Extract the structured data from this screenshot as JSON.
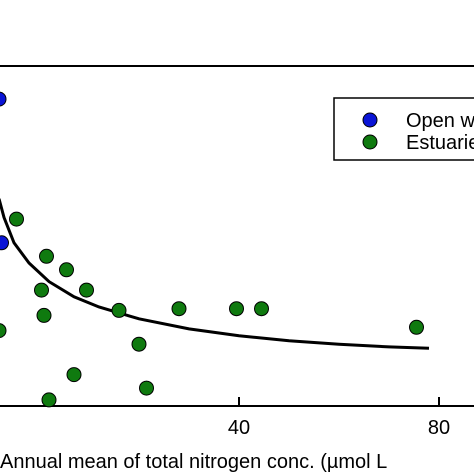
{
  "chart_data": {
    "type": "scatter",
    "xlabel": "Annual mean of total nitrogen conc. (µmol L",
    "xlim": [
      -8,
      87
    ],
    "ylim": [
      0,
      1
    ],
    "x_ticks": [
      {
        "value": 40,
        "label": "40"
      },
      {
        "value": 80,
        "label": "80"
      }
    ],
    "grid": false,
    "legend_position": "top-right",
    "series": [
      {
        "name": "Open w",
        "color": "#0a14d6",
        "points": [
          {
            "x": -8,
            "y": 0.905
          },
          {
            "x": -7.5,
            "y": 0.48
          }
        ]
      },
      {
        "name": "Estuarie",
        "color": "#0f7a0f",
        "points": [
          {
            "x": -4.5,
            "y": 0.55
          },
          {
            "x": -8,
            "y": 0.22
          },
          {
            "x": 1.5,
            "y": 0.44
          },
          {
            "x": 5.5,
            "y": 0.4
          },
          {
            "x": 0.5,
            "y": 0.34
          },
          {
            "x": 1.0,
            "y": 0.265
          },
          {
            "x": 9.5,
            "y": 0.34
          },
          {
            "x": 16.0,
            "y": 0.28
          },
          {
            "x": 20.0,
            "y": 0.18
          },
          {
            "x": 28.0,
            "y": 0.285
          },
          {
            "x": 2.0,
            "y": 0.015
          },
          {
            "x": 7.0,
            "y": 0.09
          },
          {
            "x": 21.5,
            "y": 0.05
          },
          {
            "x": 39.5,
            "y": 0.285
          },
          {
            "x": 44.5,
            "y": 0.285
          },
          {
            "x": 75.5,
            "y": 0.23
          }
        ]
      }
    ],
    "fit_curve": {
      "color": "#000000",
      "points": [
        {
          "x": -8,
          "y": 0.61
        },
        {
          "x": -7,
          "y": 0.555
        },
        {
          "x": -5,
          "y": 0.48
        },
        {
          "x": -2,
          "y": 0.42
        },
        {
          "x": 2,
          "y": 0.365
        },
        {
          "x": 7,
          "y": 0.32
        },
        {
          "x": 12,
          "y": 0.29
        },
        {
          "x": 20,
          "y": 0.255
        },
        {
          "x": 30,
          "y": 0.225
        },
        {
          "x": 40,
          "y": 0.205
        },
        {
          "x": 50,
          "y": 0.19
        },
        {
          "x": 60,
          "y": 0.18
        },
        {
          "x": 70,
          "y": 0.172
        },
        {
          "x": 78,
          "y": 0.168
        }
      ]
    }
  }
}
